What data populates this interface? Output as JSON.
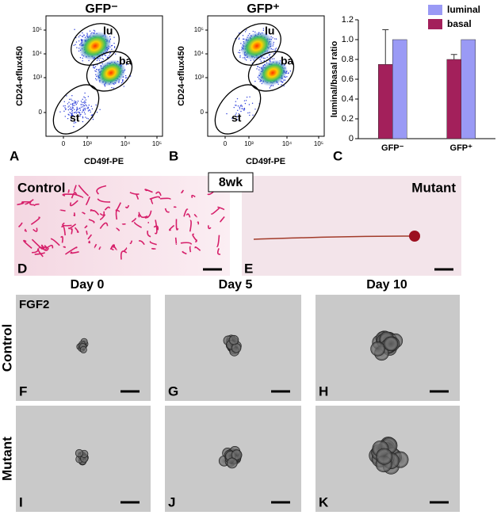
{
  "panel_letters": [
    "A",
    "B",
    "C",
    "D",
    "E",
    "F",
    "G",
    "H",
    "I",
    "J",
    "K"
  ],
  "flow_plots": [
    {
      "title": "GFP⁻",
      "y_label": "CD24-eflux450",
      "x_label": "CD49f-PE",
      "y_ticks": [
        "10⁵",
        "10⁴",
        "10³",
        "0"
      ],
      "x_ticks": [
        "0",
        "10³",
        "10⁴",
        "10⁵"
      ],
      "gates": [
        "lu",
        "ba",
        "st"
      ]
    },
    {
      "title": "GFP⁺",
      "y_label": "CD24-eflux450",
      "x_label": "CD49f-PE",
      "y_ticks": [
        "10⁵",
        "10⁴",
        "10³",
        "0"
      ],
      "x_ticks": [
        "0",
        "10³",
        "10⁴",
        "10⁵"
      ],
      "gates": [
        "lu",
        "ba",
        "st"
      ]
    }
  ],
  "chart_data": {
    "type": "bar",
    "y_label": "luminal/basal ratio",
    "categories": [
      "GFP⁻",
      "GFP⁺"
    ],
    "series": [
      {
        "name": "basal",
        "color": "#a3205b",
        "values": [
          0.75,
          0.8
        ],
        "errors": [
          0.35,
          0.05
        ]
      },
      {
        "name": "luminal",
        "color": "#9a9af5",
        "values": [
          1,
          1
        ]
      }
    ],
    "ylim": [
      0,
      1.2
    ],
    "yticks": [
      0,
      0.2,
      0.4,
      0.6,
      0.8,
      {
        "value": 1,
        "label": "1.0"
      },
      1.2
    ],
    "legend": "top-right"
  },
  "whole_mount": {
    "time": "8wk",
    "left": "Control",
    "right": "Mutant"
  },
  "culture": {
    "days": [
      "Day 0",
      "Day 5",
      "Day 10"
    ],
    "treatment": "FGF2",
    "rows": [
      "Control",
      "Mutant"
    ]
  }
}
